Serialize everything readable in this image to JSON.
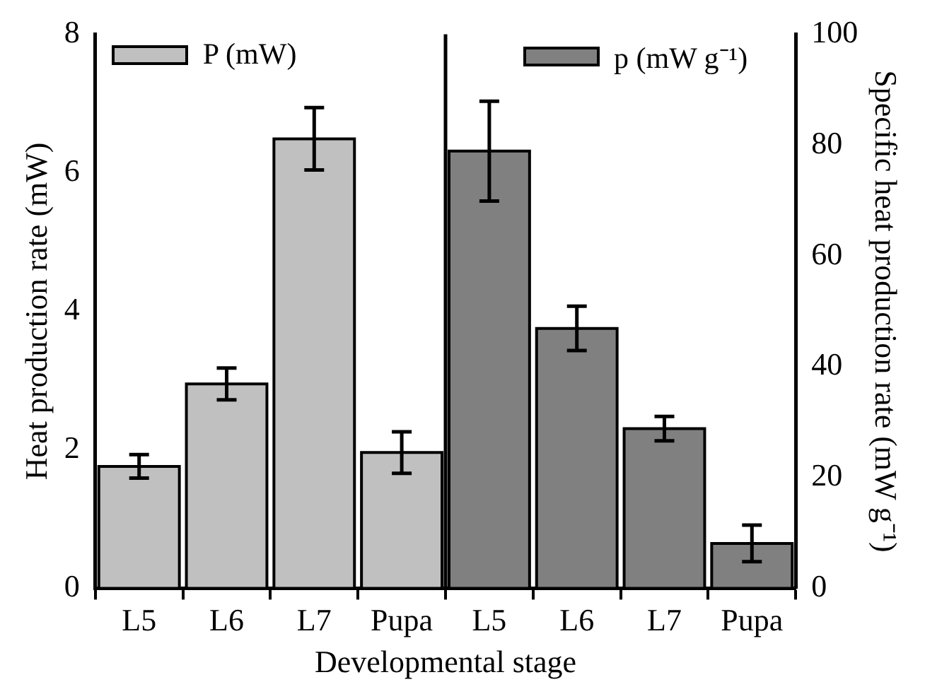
{
  "chart_data": {
    "type": "bar",
    "xlabel": "Developmental stage",
    "ylabel": "Heat production rate (mW)",
    "y2label": "Specific heat production rate (mW g⁻¹)",
    "categories": [
      "L5",
      "L6",
      "L7",
      "Pupa",
      "L5",
      "L6",
      "L7",
      "Pupa"
    ],
    "series": [
      {
        "name": "P (mW)",
        "color": "#c0c0c0",
        "values": [
          1.76,
          2.95,
          6.49,
          1.96,
          null,
          null,
          null,
          null
        ],
        "errors": [
          0.17,
          0.23,
          0.45,
          0.3,
          null,
          null,
          null,
          null
        ]
      },
      {
        "name": "p (mW g⁻¹)",
        "color": "#808080",
        "axis": "y2",
        "values": [
          null,
          null,
          null,
          null,
          78.9,
          46.9,
          28.8,
          8.1
        ],
        "errors": [
          null,
          null,
          null,
          null,
          9,
          4,
          2.2,
          3.3
        ]
      }
    ],
    "ylim": [
      0,
      8
    ],
    "yticks": [
      0,
      2,
      4,
      6,
      8
    ],
    "y2lim": [
      0,
      100
    ],
    "y2ticks": [
      0,
      20,
      40,
      60,
      80,
      100
    ],
    "grid": false,
    "legend": "top"
  }
}
